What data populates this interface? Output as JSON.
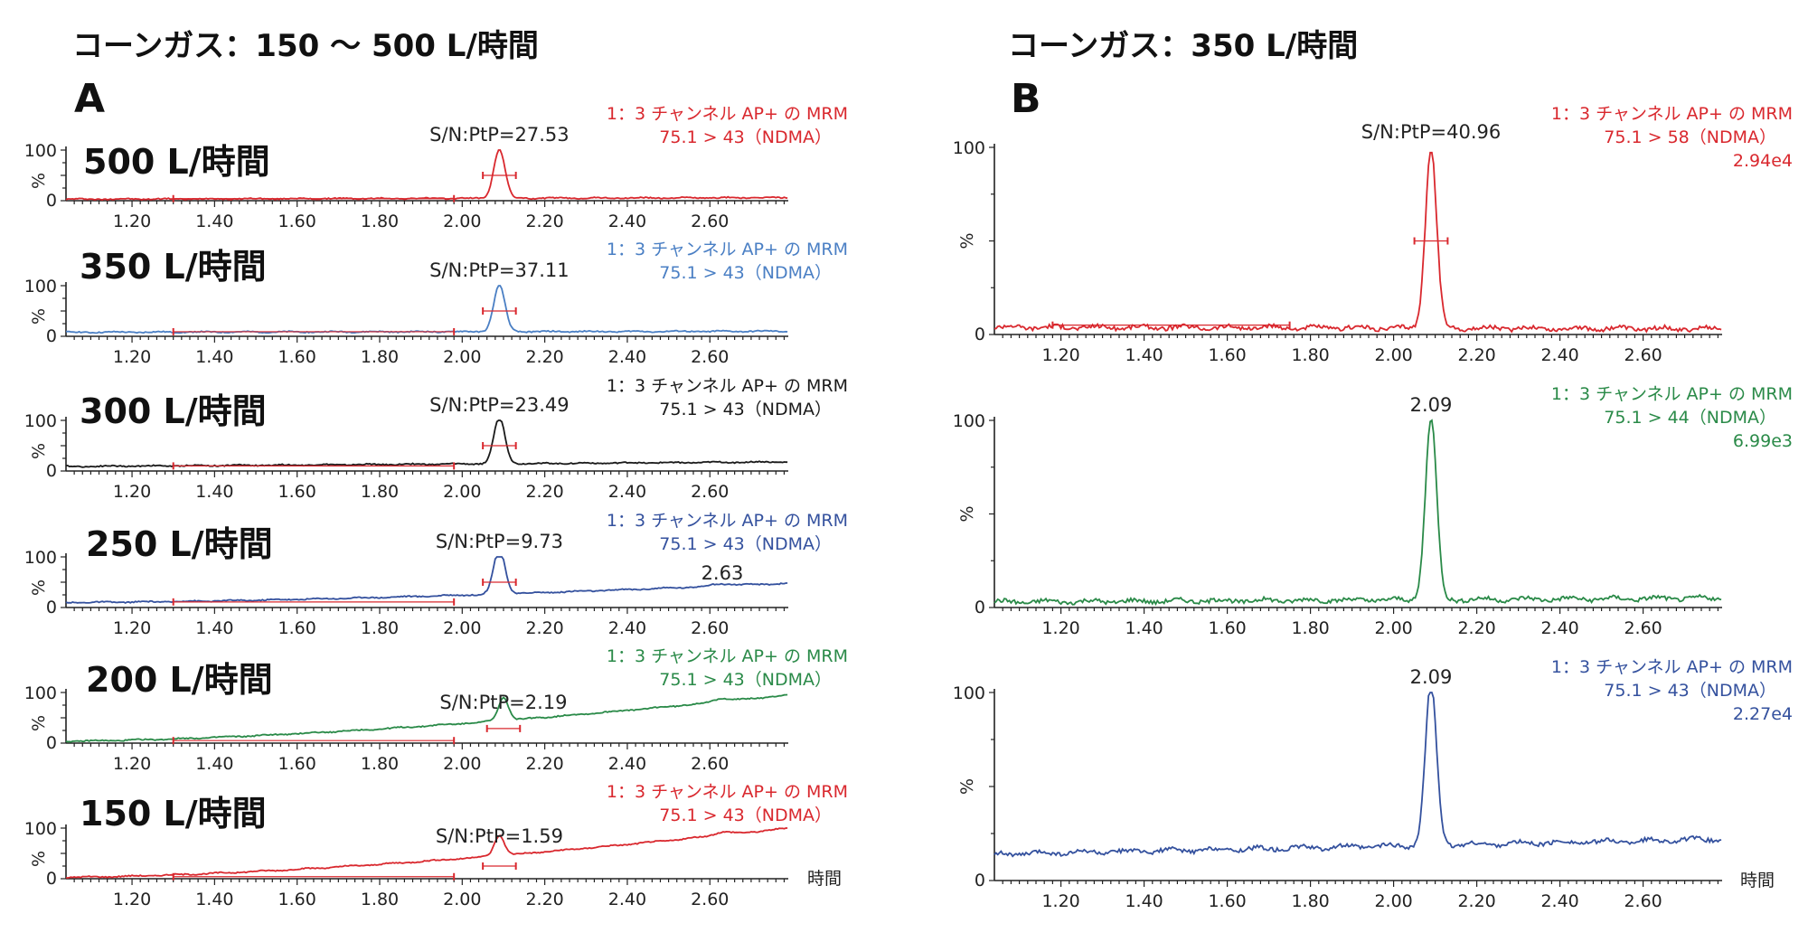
{
  "titles": {
    "left": "コーンガス：150 〜 500 L/時間",
    "right": "コーンガス：350 L/時間",
    "panel_a": "A",
    "panel_b": "B"
  },
  "axis": {
    "y_max_label": "100",
    "y_min_label": "0",
    "y_unit": "%",
    "x_label": "時間",
    "x_ticks": [
      "1.20",
      "1.40",
      "1.60",
      "1.80",
      "2.00",
      "2.20",
      "2.40",
      "2.60"
    ]
  },
  "chart_data": [
    {
      "type": "line",
      "panel": "A",
      "label": "500 L/時間",
      "color": "#d9282e",
      "legend_line1": "1：3 チャンネル AP+ の MRM",
      "legend_line2": "75.1 > 43（NDMA）",
      "annotation": "S/N:PtP=27.53",
      "annotation_x": 2.09,
      "peak_time": 2.09,
      "peak_height": 100,
      "baseline_start": 3,
      "baseline_end": 6,
      "noise_bar": [
        1.3,
        1.98
      ],
      "xlim": [
        1.04,
        2.79
      ],
      "ylim": [
        0,
        100
      ]
    },
    {
      "type": "line",
      "panel": "A",
      "label": "350 L/時間",
      "color": "#4a7fc4",
      "legend_line1": "1：3 チャンネル AP+ の MRM",
      "legend_line2": "75.1 > 43（NDMA）",
      "annotation": "S/N:PtP=37.11",
      "annotation_x": 2.09,
      "peak_time": 2.09,
      "peak_height": 100,
      "baseline_start": 8,
      "baseline_end": 10,
      "noise_bar": [
        1.3,
        1.98
      ],
      "xlim": [
        1.04,
        2.79
      ],
      "ylim": [
        0,
        100
      ]
    },
    {
      "type": "line",
      "panel": "A",
      "label": "300 L/時間",
      "color": "#1a1a1a",
      "legend_line1": "1：3 チャンネル AP+ の MRM",
      "legend_line2": "75.1 > 43（NDMA）",
      "annotation": "S/N:PtP=23.49",
      "annotation_x": 2.09,
      "peak_time": 2.09,
      "peak_height": 100,
      "baseline_start": 9,
      "baseline_end": 18,
      "noise_bar": [
        1.3,
        1.98
      ],
      "xlim": [
        1.04,
        2.79
      ],
      "ylim": [
        0,
        100
      ]
    },
    {
      "type": "line",
      "panel": "A",
      "label": "250 L/時間",
      "color": "#34519e",
      "legend_line1": "1：3 チャンネル AP+ の MRM",
      "legend_line2": "75.1 > 43（NDMA）",
      "annotation": "S/N:PtP=9.73",
      "annotation_x": 2.09,
      "extra_label": "2.63",
      "extra_label_x": 2.63,
      "peak_time": 2.09,
      "peak_height": 100,
      "baseline_start": 10,
      "baseline_end": 48,
      "noise_bar": [
        1.3,
        1.98
      ],
      "xlim": [
        1.04,
        2.79
      ],
      "ylim": [
        0,
        100
      ]
    },
    {
      "type": "line",
      "panel": "A",
      "label": "200 L/時間",
      "color": "#2a8a48",
      "legend_line1": "1：3 チャンネル AP+ の MRM",
      "legend_line2": "75.1 > 43（NDMA）",
      "annotation": "S/N:PtP=2.19",
      "annotation_x": 2.1,
      "peak_time": 2.1,
      "peak_height": 45,
      "baseline_start": 4,
      "baseline_end": 95,
      "noise_bar": [
        1.3,
        1.98
      ],
      "xlim": [
        1.04,
        2.79
      ],
      "ylim": [
        0,
        100
      ]
    },
    {
      "type": "line",
      "panel": "A",
      "label": "150 L/時間",
      "color": "#d9282e",
      "legend_line1": "1：3 チャンネル AP+ の MRM",
      "legend_line2": "75.1 > 43（NDMA）",
      "annotation": "S/N:PtP=1.59",
      "annotation_x": 2.09,
      "peak_time": 2.09,
      "peak_height": 40,
      "baseline_start": 3,
      "baseline_end": 100,
      "noise_bar": [
        1.3,
        1.98
      ],
      "xlim": [
        1.04,
        2.79
      ],
      "ylim": [
        0,
        100
      ]
    },
    {
      "type": "line",
      "panel": "B",
      "color": "#d9282e",
      "legend_line1": "1：3 チャンネル AP+ の MRM",
      "legend_line2": "75.1 > 58（NDMA）",
      "legend_line3": "2.94e4",
      "annotation": "S/N:PtP=40.96",
      "annotation_x": 2.09,
      "peak_time": 2.09,
      "peak_height": 100,
      "baseline_start": 4,
      "baseline_end": 3,
      "noise_bar": [
        1.18,
        1.75
      ],
      "xlim": [
        1.04,
        2.79
      ],
      "ylim": [
        0,
        100
      ]
    },
    {
      "type": "line",
      "panel": "B",
      "color": "#2a8a48",
      "legend_line1": "1：3 チャンネル AP+ の MRM",
      "legend_line2": "75.1 > 44（NDMA）",
      "legend_line3": "6.99e3",
      "annotation": "2.09",
      "annotation_x": 2.09,
      "peak_time": 2.09,
      "peak_height": 100,
      "baseline_start": 3,
      "baseline_end": 5,
      "xlim": [
        1.04,
        2.79
      ],
      "ylim": [
        0,
        100
      ]
    },
    {
      "type": "line",
      "panel": "B",
      "color": "#34519e",
      "legend_line1": "1：3 チャンネル AP+ の MRM",
      "legend_line2": "75.1 > 43（NDMA）",
      "legend_line3": "2.27e4",
      "annotation": "2.09",
      "annotation_x": 2.09,
      "peak_time": 2.09,
      "peak_height": 100,
      "baseline_start": 14,
      "baseline_end": 22,
      "xlim": [
        1.04,
        2.79
      ],
      "ylim": [
        0,
        100
      ]
    }
  ]
}
